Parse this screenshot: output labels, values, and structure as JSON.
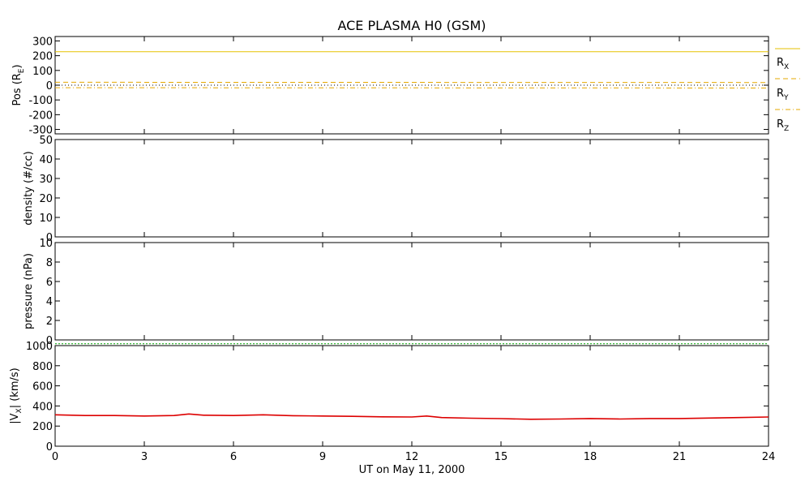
{
  "chart_data": [
    {
      "type": "line",
      "title": "ACE PLASMA H0 (GSM)",
      "ylabel_main": "Pos (R",
      "ylabel_sub": "E",
      "ylabel_end": ")",
      "ylim": [
        -330,
        330
      ],
      "yticks": [
        300,
        200,
        100,
        0,
        -100,
        -200,
        -300
      ],
      "x": [
        0,
        24
      ],
      "series": [
        {
          "name": "R",
          "sub": "X",
          "color": "#e6c200",
          "dash": "solid",
          "values": [
            227,
            227
          ]
        },
        {
          "name": "R",
          "sub": "Y",
          "color": "#e6a800",
          "dash": "dashed",
          "values": [
            20,
            18
          ]
        },
        {
          "name": "R",
          "sub": "Z",
          "color": "#e6a800",
          "dash": "dashdot",
          "values": [
            -17,
            -19
          ]
        }
      ],
      "reference_line": 0
    },
    {
      "type": "line",
      "ylabel": "density (#/cc)",
      "ylim": [
        0,
        50
      ],
      "yticks": [
        50,
        40,
        30,
        20,
        10,
        0
      ],
      "series": []
    },
    {
      "type": "line",
      "ylabel": "pressure (nPa)",
      "ylim": [
        0,
        10
      ],
      "yticks": [
        10,
        8,
        6,
        4,
        2,
        0
      ],
      "series": [
        {
          "name": "",
          "color": "#00a000",
          "dash": "dotted",
          "x": [
            0,
            24
          ],
          "values": [
            -0.4,
            -0.4
          ]
        }
      ]
    },
    {
      "type": "line",
      "ylabel_main": "|V",
      "ylabel_sub": "X",
      "ylabel_end": "| (km/s)",
      "ylim": [
        0,
        1000
      ],
      "yticks": [
        1000,
        800,
        600,
        400,
        200,
        0
      ],
      "xlabel": "UT on May 11, 2000",
      "xlim": [
        0,
        24
      ],
      "xticks": [
        0,
        3,
        6,
        9,
        12,
        15,
        18,
        21,
        24
      ],
      "series": [
        {
          "name": "",
          "color": "#dd0000",
          "x": [
            0,
            1,
            2,
            3,
            4,
            4.5,
            5,
            6,
            7,
            8,
            9,
            10,
            11,
            12,
            12.5,
            13,
            14,
            15,
            16,
            17,
            18,
            19,
            20,
            21,
            22,
            23,
            24
          ],
          "values": [
            312,
            305,
            305,
            300,
            305,
            320,
            308,
            305,
            312,
            303,
            300,
            297,
            292,
            290,
            300,
            285,
            278,
            274,
            268,
            270,
            275,
            270,
            275,
            275,
            280,
            285,
            290
          ]
        }
      ]
    }
  ]
}
